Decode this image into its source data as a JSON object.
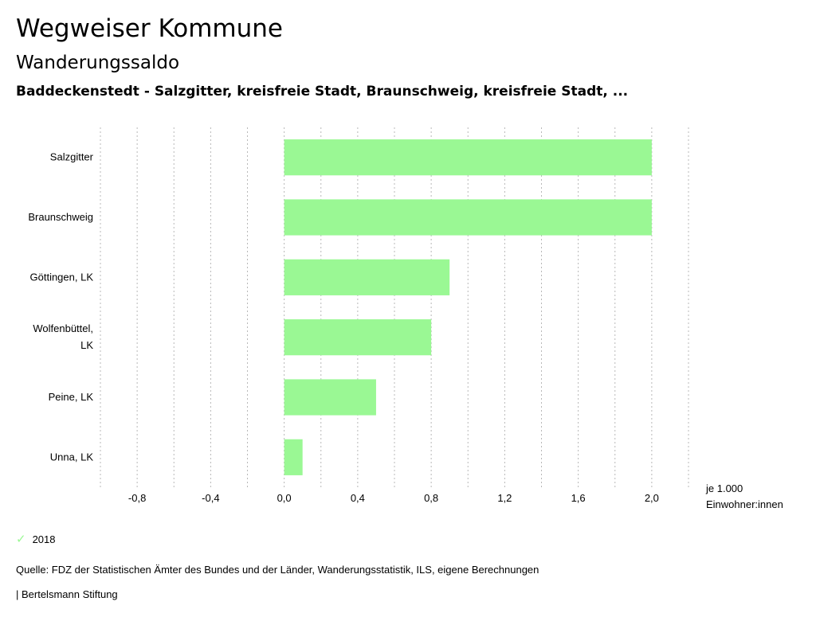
{
  "header": {
    "title": "Wegweiser Kommune",
    "subtitle": "Wanderungssaldo",
    "region": "Baddeckenstedt - Salzgitter, kreisfreie Stadt, Braunschweig, kreisfreie Stadt, ..."
  },
  "chart_data": {
    "type": "bar",
    "orientation": "horizontal",
    "categories": [
      "Salzgitter",
      "Braunschweig",
      "Göttingen, LK",
      "Wolfenbüttel, LK",
      "Peine, LK",
      "Unna, LK"
    ],
    "series": [
      {
        "name": "2018",
        "values": [
          2.0,
          2.0,
          0.9,
          0.8,
          0.5,
          0.1
        ],
        "color": "#9af894"
      }
    ],
    "xlim": [
      -1.0,
      2.2
    ],
    "xticks": [
      -0.8,
      -0.4,
      0.0,
      0.4,
      0.8,
      1.2,
      1.6,
      2.0
    ],
    "xtick_labels": [
      "-0,8",
      "-0,4",
      "0,0",
      "0,4",
      "0,8",
      "1,2",
      "1,6",
      "2,0"
    ],
    "grid": true,
    "unit_label_1": "je 1.000",
    "unit_label_2": "Einwohner:innen"
  },
  "legend": {
    "label": "2018",
    "color": "#9af894"
  },
  "footer": {
    "source": "Quelle: FDZ der Statistischen Ämter des Bundes und der Länder, Wanderungsstatistik, ILS, eigene Berechnungen",
    "brand": "| Bertelsmann Stiftung"
  }
}
